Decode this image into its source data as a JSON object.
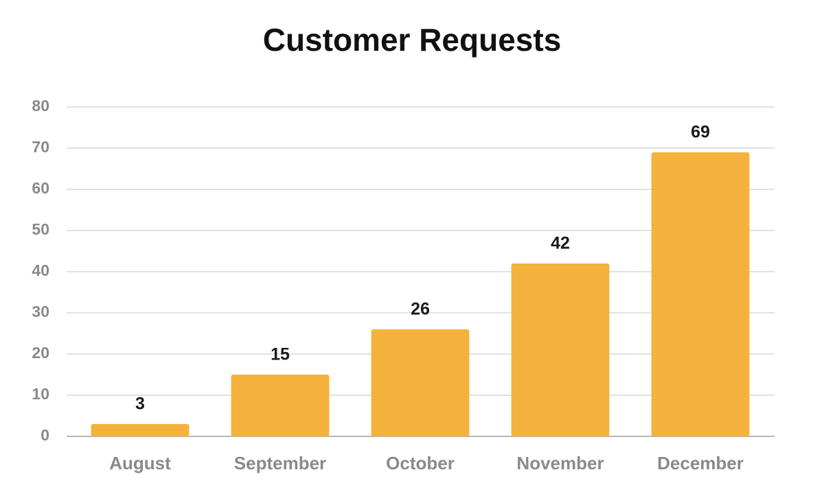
{
  "chart_data": {
    "type": "bar",
    "title": "Customer Requests",
    "categories": [
      "August",
      "September",
      "October",
      "November",
      "December"
    ],
    "values": [
      3,
      15,
      26,
      42,
      69
    ],
    "color": "#f4b23c",
    "ylim": [
      0,
      80
    ],
    "yticks": [
      0,
      10,
      20,
      30,
      40,
      50,
      60,
      70,
      80
    ],
    "grid": true
  }
}
